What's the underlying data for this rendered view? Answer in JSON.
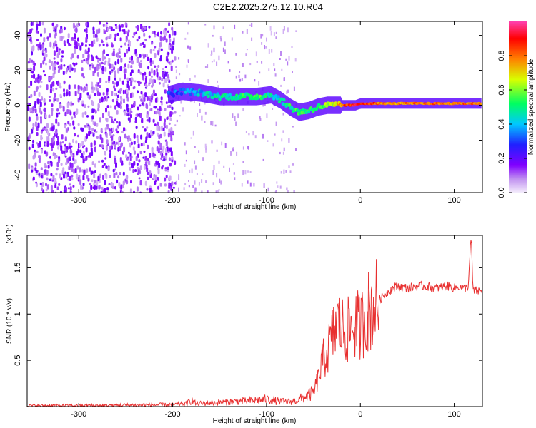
{
  "title": "C2E2.2025.275.12.10.R04",
  "chart_data": [
    {
      "type": "heatmap",
      "name": "spectrogram",
      "xlabel": "Height of straight line (km)",
      "ylabel": "Frequency (Hz)",
      "xlim": [
        -355,
        130
      ],
      "ylim": [
        -50,
        48
      ],
      "xticks": [
        -300,
        -200,
        -100,
        0,
        100
      ],
      "yticks": [
        -40,
        -20,
        0,
        20,
        40
      ],
      "colorbar": {
        "label": "Normalized spectral amplitude",
        "range": [
          0,
          1
        ],
        "ticks": [
          0.0,
          0.2,
          0.4,
          0.6,
          0.8
        ],
        "colors": [
          "#e8d8f8",
          "#8000ff",
          "#0000ff",
          "#00c8ff",
          "#00ff60",
          "#ffff00",
          "#ff8000",
          "#ff0000",
          "#ff40a0"
        ]
      },
      "signal_track": {
        "description_points_x": [
          -205,
          -190,
          -170,
          -150,
          -130,
          -110,
          -95,
          -85,
          -75,
          -65,
          -55,
          -45,
          -35,
          -25,
          -15,
          -5,
          0,
          10,
          30,
          60,
          90,
          130
        ],
        "frequency": [
          6,
          8,
          7,
          5,
          5,
          5,
          6,
          3,
          -1,
          -4,
          -3,
          -1,
          0,
          0,
          0,
          0,
          1,
          1,
          1,
          1,
          1,
          1
        ],
        "amplitude": [
          0.3,
          0.35,
          0.4,
          0.45,
          0.5,
          0.55,
          0.45,
          0.45,
          0.5,
          0.55,
          0.5,
          0.55,
          0.6,
          0.7,
          0.85,
          0.9,
          0.9,
          0.85,
          0.75,
          0.8,
          0.8,
          0.8
        ]
      },
      "noise_region_x": [
        -355,
        -198
      ]
    },
    {
      "type": "line",
      "name": "snr",
      "xlabel": "Height of straight line (km)",
      "ylabel": "SNR (10 * v/v)",
      "y_multiplier": "(x10⁴)",
      "xlim": [
        -355,
        130
      ],
      "ylim": [
        0,
        1.85
      ],
      "xticks": [
        -300,
        -200,
        -100,
        0,
        100
      ],
      "yticks": [
        0.5,
        1.0,
        1.5
      ],
      "color": "#e83030",
      "x": [
        -355,
        -300,
        -250,
        -200,
        -185,
        -180,
        -175,
        -160,
        -140,
        -120,
        -100,
        -90,
        -80,
        -70,
        -60,
        -50,
        -45,
        -40,
        -35,
        -30,
        -25,
        -20,
        -15,
        -10,
        -5,
        0,
        5,
        10,
        15,
        20,
        25,
        30,
        35,
        40,
        50,
        60,
        70,
        80,
        90,
        95,
        100,
        105,
        110,
        115,
        118,
        120,
        125,
        130
      ],
      "y": [
        0.01,
        0.01,
        0.015,
        0.02,
        0.03,
        0.07,
        0.03,
        0.04,
        0.05,
        0.06,
        0.08,
        0.06,
        0.05,
        0.06,
        0.1,
        0.15,
        0.3,
        0.5,
        0.6,
        0.75,
        0.9,
        0.85,
        0.8,
        0.85,
        0.9,
        0.85,
        1.0,
        1.05,
        1.1,
        1.15,
        1.2,
        1.25,
        1.28,
        1.3,
        1.28,
        1.3,
        1.3,
        1.28,
        1.3,
        1.3,
        1.28,
        1.3,
        1.27,
        1.3,
        1.85,
        1.25,
        1.25,
        1.24
      ]
    }
  ]
}
